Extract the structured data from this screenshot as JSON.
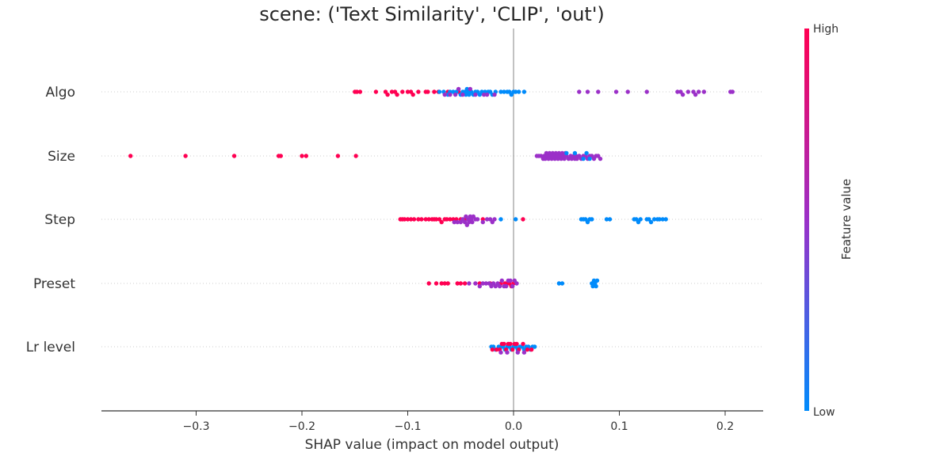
{
  "chart_data": {
    "type": "scatter",
    "subtype": "shap-beeswarm",
    "title": "scene: ('Text Similarity', 'CLIP', 'out')",
    "xlabel": "SHAP value (impact on model output)",
    "xlim": [
      -0.39,
      0.24
    ],
    "xticks": [
      -0.3,
      -0.2,
      -0.1,
      0.0,
      0.1,
      0.2
    ],
    "xtick_labels": [
      "−0.3",
      "−0.2",
      "−0.1",
      "0.0",
      "0.1",
      "0.2"
    ],
    "grid": "dotted horizontal lines per feature",
    "colorbar": {
      "title": "Feature value",
      "high_label": "High",
      "low_label": "Low",
      "high_color": "#ff0052",
      "mid_color": "#9b30c8",
      "low_color": "#008bfb"
    },
    "features": [
      {
        "name": "Algo",
        "points": [
          {
            "c": "high",
            "values": [
              -0.15,
              -0.148,
              -0.145,
              -0.13,
              -0.121,
              -0.119,
              -0.115,
              -0.112,
              -0.11,
              -0.105,
              -0.1,
              -0.097,
              -0.095,
              -0.09,
              -0.083,
              -0.081,
              -0.075,
              -0.071,
              -0.062,
              -0.052
            ]
          },
          {
            "c": "low",
            "values": [
              -0.07,
              -0.066,
              -0.062,
              -0.06,
              -0.057,
              -0.054,
              -0.05,
              -0.048,
              -0.046,
              -0.045,
              -0.044,
              -0.043,
              -0.042,
              -0.04,
              -0.038,
              -0.036,
              -0.034,
              -0.032,
              -0.03,
              -0.027,
              -0.024,
              -0.022,
              -0.02,
              -0.017,
              -0.012,
              -0.009,
              -0.006,
              -0.004,
              -0.002,
              0.0,
              0.002,
              0.005,
              0.01
            ]
          },
          {
            "c": "mid",
            "values": [
              -0.065,
              -0.06,
              -0.055,
              -0.052,
              -0.048,
              -0.041,
              -0.036,
              -0.028,
              -0.025,
              -0.018,
              0.062,
              0.07,
              0.08,
              0.097,
              0.108,
              0.126,
              0.155,
              0.158,
              0.16,
              0.165,
              0.17,
              0.172,
              0.175,
              0.18,
              0.205,
              0.207
            ]
          }
        ]
      },
      {
        "name": "Size",
        "points": [
          {
            "c": "high",
            "values": [
              -0.362,
              -0.31,
              -0.264,
              -0.222,
              -0.22,
              -0.2,
              -0.196,
              -0.166,
              -0.149
            ]
          },
          {
            "c": "mid",
            "values": [
              0.022,
              0.024,
              0.026,
              0.028,
              0.029,
              0.03,
              0.031,
              0.032,
              0.033,
              0.034,
              0.035,
              0.036,
              0.037,
              0.038,
              0.039,
              0.04,
              0.041,
              0.042,
              0.043,
              0.044,
              0.045,
              0.046,
              0.047,
              0.048,
              0.049,
              0.05,
              0.052,
              0.054,
              0.055,
              0.057,
              0.058,
              0.059,
              0.06,
              0.062,
              0.064,
              0.066,
              0.068,
              0.07,
              0.072,
              0.074,
              0.076,
              0.078,
              0.08,
              0.082
            ]
          },
          {
            "c": "low",
            "values": [
              0.05,
              0.058,
              0.066,
              0.069,
              0.072
            ]
          }
        ]
      },
      {
        "name": "Step",
        "points": [
          {
            "c": "high",
            "values": [
              -0.107,
              -0.105,
              -0.103,
              -0.1,
              -0.097,
              -0.094,
              -0.09,
              -0.087,
              -0.083,
              -0.08,
              -0.077,
              -0.075,
              -0.073,
              -0.07,
              -0.068,
              -0.065,
              -0.063,
              -0.06,
              -0.057,
              -0.054,
              -0.05,
              -0.046,
              -0.029,
              0.009
            ]
          },
          {
            "c": "mid",
            "values": [
              -0.056,
              -0.053,
              -0.05,
              -0.048,
              -0.046,
              -0.045,
              -0.044,
              -0.043,
              -0.042,
              -0.041,
              -0.04,
              -0.039,
              -0.038,
              -0.036,
              -0.034,
              -0.029,
              -0.025,
              -0.022,
              -0.02,
              -0.018
            ]
          },
          {
            "c": "low",
            "values": [
              -0.012,
              0.002,
              0.064,
              0.066,
              0.068,
              0.07,
              0.072,
              0.074,
              0.088,
              0.091,
              0.114,
              0.116,
              0.118,
              0.12,
              0.126,
              0.128,
              0.13,
              0.133,
              0.136,
              0.138,
              0.141,
              0.144
            ]
          }
        ]
      },
      {
        "name": "Preset",
        "points": [
          {
            "c": "high",
            "values": [
              -0.08,
              -0.073,
              -0.068,
              -0.065,
              -0.062,
              -0.053,
              -0.05,
              -0.046,
              -0.032,
              -0.022,
              -0.012,
              -0.008,
              -0.006,
              -0.004,
              -0.002,
              0.0
            ]
          },
          {
            "c": "mid",
            "values": [
              -0.042,
              -0.036,
              -0.032,
              -0.029,
              -0.026,
              -0.023,
              -0.021,
              -0.019,
              -0.017,
              -0.015,
              -0.013,
              -0.011,
              -0.009,
              -0.007,
              -0.005,
              -0.003,
              -0.001,
              0.001,
              0.003
            ]
          },
          {
            "c": "low",
            "values": [
              0.043,
              0.046,
              0.074,
              0.075,
              0.076,
              0.077,
              0.078,
              0.079
            ]
          }
        ]
      },
      {
        "name": "Lr level",
        "points": [
          {
            "c": "low",
            "values": [
              -0.021,
              -0.019,
              -0.017,
              -0.014,
              -0.012,
              -0.01,
              -0.008,
              -0.006,
              -0.004,
              -0.002,
              0.0,
              0.002,
              0.004,
              0.006,
              0.008,
              0.01,
              0.012,
              0.014,
              0.016,
              0.018,
              0.02
            ]
          },
          {
            "c": "high",
            "values": [
              -0.02,
              -0.016,
              -0.013,
              -0.011,
              -0.009,
              -0.007,
              -0.005,
              -0.003,
              -0.001,
              0.001,
              0.003,
              0.005,
              0.009,
              0.013,
              0.017
            ]
          },
          {
            "c": "mid",
            "values": [
              -0.012,
              -0.006,
              0.004,
              0.01
            ]
          }
        ]
      }
    ]
  }
}
